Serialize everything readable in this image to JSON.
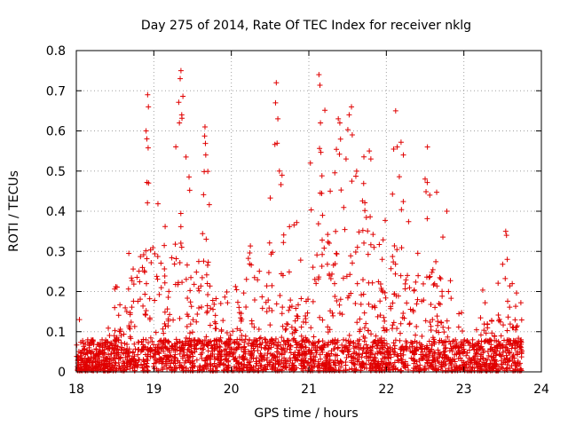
{
  "chart_data": {
    "type": "scatter",
    "title": "Day 275 of 2014, Rate Of TEC Index for receiver nklg",
    "xlabel": "GPS time / hours",
    "ylabel": "ROTI / TECUs",
    "xlim": [
      18,
      24
    ],
    "ylim": [
      0,
      0.8
    ],
    "xticks": [
      18,
      19,
      20,
      21,
      22,
      23,
      24
    ],
    "xtick_labels": [
      "18",
      "19",
      "20",
      "21",
      "22",
      "23",
      "24"
    ],
    "yticks": [
      0,
      0.1,
      0.2,
      0.3,
      0.4,
      0.5,
      0.6,
      0.7,
      0.8
    ],
    "ytick_labels": [
      "0",
      "0.1",
      "0.2",
      "0.3",
      "0.4",
      "0.5",
      "0.6",
      "0.7",
      "0.8"
    ],
    "grid": true,
    "marker": "+",
    "color": "#e00000",
    "data_end_hour": 23.75,
    "activity_envelope": [
      {
        "x": 18.0,
        "y": 0.06
      },
      {
        "x": 18.2,
        "y": 0.06
      },
      {
        "x": 18.4,
        "y": 0.14
      },
      {
        "x": 18.6,
        "y": 0.3
      },
      {
        "x": 18.8,
        "y": 0.5
      },
      {
        "x": 18.9,
        "y": 0.69
      },
      {
        "x": 19.0,
        "y": 0.4
      },
      {
        "x": 19.2,
        "y": 0.5
      },
      {
        "x": 19.35,
        "y": 0.75
      },
      {
        "x": 19.5,
        "y": 0.45
      },
      {
        "x": 19.65,
        "y": 0.61
      },
      {
        "x": 19.8,
        "y": 0.28
      },
      {
        "x": 20.0,
        "y": 0.2
      },
      {
        "x": 20.2,
        "y": 0.33
      },
      {
        "x": 20.4,
        "y": 0.3
      },
      {
        "x": 20.6,
        "y": 0.72
      },
      {
        "x": 20.7,
        "y": 0.41
      },
      {
        "x": 21.0,
        "y": 0.4
      },
      {
        "x": 21.15,
        "y": 0.74
      },
      {
        "x": 21.35,
        "y": 0.63
      },
      {
        "x": 21.5,
        "y": 0.66
      },
      {
        "x": 21.7,
        "y": 0.55
      },
      {
        "x": 21.85,
        "y": 0.45
      },
      {
        "x": 22.0,
        "y": 0.4
      },
      {
        "x": 22.15,
        "y": 0.65
      },
      {
        "x": 22.3,
        "y": 0.45
      },
      {
        "x": 22.55,
        "y": 0.56
      },
      {
        "x": 22.7,
        "y": 0.4
      },
      {
        "x": 22.85,
        "y": 0.22
      },
      {
        "x": 23.0,
        "y": 0.15
      },
      {
        "x": 23.2,
        "y": 0.2
      },
      {
        "x": 23.35,
        "y": 0.24
      },
      {
        "x": 23.55,
        "y": 0.35
      },
      {
        "x": 23.75,
        "y": 0.16
      }
    ],
    "outliers": [
      {
        "x": 18.04,
        "y": 0.13
      },
      {
        "x": 18.92,
        "y": 0.69
      },
      {
        "x": 18.93,
        "y": 0.66
      },
      {
        "x": 18.9,
        "y": 0.6
      },
      {
        "x": 18.91,
        "y": 0.58
      },
      {
        "x": 19.35,
        "y": 0.75
      },
      {
        "x": 19.34,
        "y": 0.73
      },
      {
        "x": 19.36,
        "y": 0.64
      },
      {
        "x": 19.33,
        "y": 0.62
      },
      {
        "x": 19.66,
        "y": 0.61
      },
      {
        "x": 19.67,
        "y": 0.54
      },
      {
        "x": 20.58,
        "y": 0.72
      },
      {
        "x": 20.57,
        "y": 0.67
      },
      {
        "x": 20.6,
        "y": 0.63
      },
      {
        "x": 20.62,
        "y": 0.5
      },
      {
        "x": 21.13,
        "y": 0.74
      },
      {
        "x": 21.15,
        "y": 0.62
      },
      {
        "x": 21.02,
        "y": 0.52
      },
      {
        "x": 21.38,
        "y": 0.63
      },
      {
        "x": 21.4,
        "y": 0.62
      },
      {
        "x": 21.55,
        "y": 0.66
      },
      {
        "x": 21.52,
        "y": 0.64
      },
      {
        "x": 21.56,
        "y": 0.59
      },
      {
        "x": 21.48,
        "y": 0.53
      },
      {
        "x": 21.78,
        "y": 0.55
      },
      {
        "x": 21.8,
        "y": 0.53
      },
      {
        "x": 22.12,
        "y": 0.65
      },
      {
        "x": 22.14,
        "y": 0.56
      },
      {
        "x": 22.22,
        "y": 0.54
      },
      {
        "x": 22.53,
        "y": 0.56
      },
      {
        "x": 22.5,
        "y": 0.48
      },
      {
        "x": 22.78,
        "y": 0.4
      },
      {
        "x": 23.54,
        "y": 0.35
      },
      {
        "x": 23.55,
        "y": 0.34
      },
      {
        "x": 23.56,
        "y": 0.28
      }
    ]
  }
}
